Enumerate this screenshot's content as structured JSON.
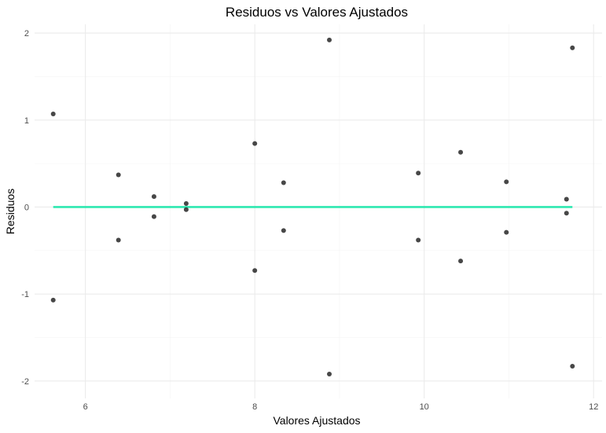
{
  "chart_data": {
    "type": "scatter",
    "title": "Residuos vs Valores Ajustados",
    "xlabel": "Valores Ajustados",
    "ylabel": "Residuos",
    "xlim": [
      5.4,
      12.1
    ],
    "ylim": [
      -2.2,
      2.1
    ],
    "x_ticks": [
      6,
      8,
      10,
      12
    ],
    "y_ticks": [
      -2,
      -1,
      0,
      1,
      2
    ],
    "x_tick_labels": [
      "6",
      "8",
      "10",
      "12"
    ],
    "y_tick_labels": [
      "-2",
      "-1",
      "0",
      "1",
      "2"
    ],
    "grid": true,
    "point_color": "#333333",
    "line_color": "#2ee8b0",
    "points": [
      {
        "x": 5.62,
        "y": 1.07
      },
      {
        "x": 5.62,
        "y": -1.07
      },
      {
        "x": 6.39,
        "y": 0.37
      },
      {
        "x": 6.39,
        "y": -0.38
      },
      {
        "x": 6.81,
        "y": 0.12
      },
      {
        "x": 6.81,
        "y": -0.11
      },
      {
        "x": 7.19,
        "y": 0.04
      },
      {
        "x": 7.19,
        "y": -0.03
      },
      {
        "x": 8.0,
        "y": 0.73
      },
      {
        "x": 8.0,
        "y": -0.73
      },
      {
        "x": 8.34,
        "y": 0.28
      },
      {
        "x": 8.34,
        "y": -0.27
      },
      {
        "x": 8.88,
        "y": 1.92
      },
      {
        "x": 8.88,
        "y": -1.92
      },
      {
        "x": 9.93,
        "y": 0.39
      },
      {
        "x": 9.93,
        "y": -0.38
      },
      {
        "x": 10.43,
        "y": 0.63
      },
      {
        "x": 10.43,
        "y": -0.62
      },
      {
        "x": 10.97,
        "y": 0.29
      },
      {
        "x": 10.97,
        "y": -0.29
      },
      {
        "x": 11.68,
        "y": 0.09
      },
      {
        "x": 11.68,
        "y": -0.07
      },
      {
        "x": 11.75,
        "y": 1.83
      },
      {
        "x": 11.75,
        "y": -1.83
      }
    ],
    "reference_line": {
      "y": 0,
      "x_start": 5.62,
      "x_end": 11.75
    }
  }
}
